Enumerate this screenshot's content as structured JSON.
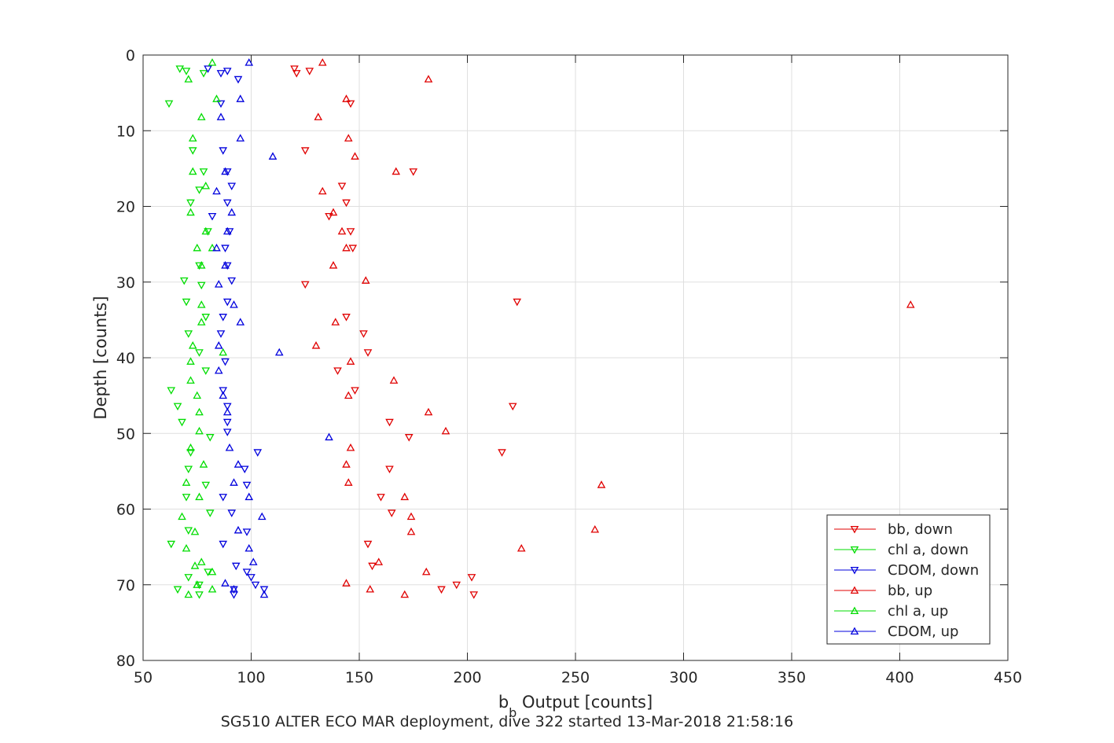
{
  "chart_data": {
    "type": "scatter",
    "xlabel_main": "b",
    "xlabel_sub": "b",
    "xlabel_rest": " Output [counts]",
    "ylabel": "Depth [counts]",
    "caption": "SG510 ALTER ECO MAR deployment, dive 322 started 13-Mar-2018 21:58:16",
    "xlim": [
      50,
      450
    ],
    "ylim": [
      0,
      80
    ],
    "y_reversed": true,
    "grid": true,
    "legend_position": "bottom-right",
    "xticks": [
      50,
      100,
      150,
      200,
      250,
      300,
      350,
      400,
      450
    ],
    "yticks": [
      0,
      10,
      20,
      30,
      40,
      50,
      60,
      70,
      80
    ],
    "series": [
      {
        "name": "bb, down",
        "color": "#e00000",
        "marker": "down",
        "points": [
          [
            120,
            1.8
          ],
          [
            121,
            2.4
          ],
          [
            127,
            2.1
          ],
          [
            146,
            6.4
          ],
          [
            125,
            12.6
          ],
          [
            175,
            15.4
          ],
          [
            142,
            17.3
          ],
          [
            144,
            19.5
          ],
          [
            136,
            21.3
          ],
          [
            146,
            23.3
          ],
          [
            147,
            25.5
          ],
          [
            125,
            30.3
          ],
          [
            223,
            32.6
          ],
          [
            144,
            34.6
          ],
          [
            152,
            36.8
          ],
          [
            154,
            39.3
          ],
          [
            140,
            41.7
          ],
          [
            148,
            44.3
          ],
          [
            221,
            46.4
          ],
          [
            164,
            48.5
          ],
          [
            173,
            50.5
          ],
          [
            216,
            52.5
          ],
          [
            164,
            54.7
          ],
          [
            160,
            58.4
          ],
          [
            165,
            60.5
          ],
          [
            154,
            64.6
          ],
          [
            156,
            67.5
          ],
          [
            202,
            69.0
          ],
          [
            195,
            70.0
          ],
          [
            188,
            70.6
          ],
          [
            203,
            71.3
          ]
        ]
      },
      {
        "name": "chl a, down",
        "color": "#00dd00",
        "marker": "down",
        "points": [
          [
            67,
            1.8
          ],
          [
            70,
            2.1
          ],
          [
            78,
            2.4
          ],
          [
            62,
            6.4
          ],
          [
            73,
            12.6
          ],
          [
            78,
            15.4
          ],
          [
            76,
            17.8
          ],
          [
            72,
            19.5
          ],
          [
            80,
            23.3
          ],
          [
            76,
            27.8
          ],
          [
            69,
            29.8
          ],
          [
            77,
            30.4
          ],
          [
            70,
            32.6
          ],
          [
            79,
            34.6
          ],
          [
            71,
            36.8
          ],
          [
            76,
            39.3
          ],
          [
            79,
            41.7
          ],
          [
            63,
            44.3
          ],
          [
            66,
            46.4
          ],
          [
            68,
            48.5
          ],
          [
            81,
            50.5
          ],
          [
            72,
            52.5
          ],
          [
            71,
            54.7
          ],
          [
            79,
            56.8
          ],
          [
            70,
            58.4
          ],
          [
            81,
            60.5
          ],
          [
            71,
            62.8
          ],
          [
            63,
            64.6
          ],
          [
            80,
            68.3
          ],
          [
            71,
            69.0
          ],
          [
            76,
            70.0
          ],
          [
            66,
            70.6
          ],
          [
            76,
            71.3
          ]
        ]
      },
      {
        "name": "CDOM, down",
        "color": "#0000dd",
        "marker": "down",
        "points": [
          [
            80,
            1.8
          ],
          [
            89,
            2.1
          ],
          [
            86,
            2.4
          ],
          [
            94,
            3.2
          ],
          [
            86,
            6.4
          ],
          [
            87,
            12.6
          ],
          [
            89,
            15.4
          ],
          [
            91,
            17.3
          ],
          [
            89,
            19.5
          ],
          [
            82,
            21.3
          ],
          [
            90,
            23.3
          ],
          [
            88,
            25.5
          ],
          [
            89,
            27.8
          ],
          [
            91,
            29.8
          ],
          [
            89,
            32.6
          ],
          [
            87,
            34.6
          ],
          [
            86,
            36.8
          ],
          [
            88,
            40.5
          ],
          [
            87,
            44.3
          ],
          [
            89,
            46.4
          ],
          [
            89,
            48.5
          ],
          [
            89,
            49.8
          ],
          [
            103,
            52.5
          ],
          [
            97,
            54.7
          ],
          [
            98,
            56.8
          ],
          [
            87,
            58.4
          ],
          [
            91,
            60.5
          ],
          [
            98,
            63.0
          ],
          [
            87,
            64.6
          ],
          [
            93,
            67.5
          ],
          [
            98,
            68.3
          ],
          [
            100,
            69.0
          ],
          [
            102,
            70.0
          ],
          [
            92,
            70.6
          ],
          [
            106,
            70.6
          ],
          [
            92,
            71.3
          ]
        ]
      },
      {
        "name": "bb, up",
        "color": "#e00000",
        "marker": "up",
        "points": [
          [
            133,
            1.0
          ],
          [
            182,
            3.2
          ],
          [
            144,
            5.8
          ],
          [
            131,
            8.2
          ],
          [
            145,
            11.0
          ],
          [
            148,
            13.4
          ],
          [
            167,
            15.4
          ],
          [
            133,
            18.0
          ],
          [
            138,
            20.8
          ],
          [
            142,
            23.3
          ],
          [
            144,
            25.5
          ],
          [
            138,
            27.8
          ],
          [
            153,
            29.8
          ],
          [
            405,
            33.0
          ],
          [
            139,
            35.3
          ],
          [
            130,
            38.4
          ],
          [
            146,
            40.5
          ],
          [
            166,
            43.0
          ],
          [
            145,
            45.0
          ],
          [
            182,
            47.2
          ],
          [
            190,
            49.7
          ],
          [
            146,
            51.9
          ],
          [
            144,
            54.1
          ],
          [
            145,
            56.5
          ],
          [
            262,
            56.8
          ],
          [
            171,
            58.4
          ],
          [
            174,
            61.0
          ],
          [
            259,
            62.7
          ],
          [
            174,
            63.0
          ],
          [
            225,
            65.2
          ],
          [
            159,
            67.0
          ],
          [
            181,
            68.3
          ],
          [
            144,
            69.8
          ],
          [
            155,
            70.6
          ],
          [
            171,
            71.3
          ]
        ]
      },
      {
        "name": "chl a, up",
        "color": "#00dd00",
        "marker": "up",
        "points": [
          [
            82,
            1.0
          ],
          [
            71,
            3.2
          ],
          [
            84,
            5.8
          ],
          [
            77,
            8.2
          ],
          [
            73,
            11.0
          ],
          [
            73,
            15.4
          ],
          [
            79,
            17.3
          ],
          [
            72,
            20.8
          ],
          [
            79,
            23.3
          ],
          [
            75,
            25.5
          ],
          [
            82,
            25.5
          ],
          [
            77,
            27.8
          ],
          [
            77,
            33.0
          ],
          [
            77,
            35.3
          ],
          [
            73,
            38.4
          ],
          [
            87,
            39.3
          ],
          [
            72,
            40.5
          ],
          [
            72,
            43.0
          ],
          [
            75,
            45.0
          ],
          [
            76,
            47.2
          ],
          [
            76,
            49.7
          ],
          [
            72,
            51.9
          ],
          [
            78,
            54.1
          ],
          [
            70,
            56.5
          ],
          [
            76,
            58.4
          ],
          [
            68,
            61.0
          ],
          [
            74,
            63.0
          ],
          [
            70,
            65.2
          ],
          [
            77,
            67.0
          ],
          [
            74,
            67.5
          ],
          [
            82,
            68.3
          ],
          [
            75,
            70.0
          ],
          [
            75,
            70.0
          ],
          [
            82,
            70.6
          ],
          [
            71,
            71.3
          ]
        ]
      },
      {
        "name": "CDOM, up",
        "color": "#0000dd",
        "marker": "up",
        "points": [
          [
            99,
            1.0
          ],
          [
            95,
            5.8
          ],
          [
            86,
            8.2
          ],
          [
            95,
            11.0
          ],
          [
            110,
            13.4
          ],
          [
            88,
            15.4
          ],
          [
            84,
            18.0
          ],
          [
            91,
            20.8
          ],
          [
            89,
            23.3
          ],
          [
            84,
            25.5
          ],
          [
            88,
            27.8
          ],
          [
            85,
            30.3
          ],
          [
            92,
            33.0
          ],
          [
            95,
            35.3
          ],
          [
            85,
            38.4
          ],
          [
            113,
            39.3
          ],
          [
            85,
            41.7
          ],
          [
            87,
            45.0
          ],
          [
            89,
            47.2
          ],
          [
            136,
            50.5
          ],
          [
            90,
            51.9
          ],
          [
            94,
            54.1
          ],
          [
            92,
            56.5
          ],
          [
            99,
            58.4
          ],
          [
            105,
            61.0
          ],
          [
            94,
            62.8
          ],
          [
            99,
            65.2
          ],
          [
            101,
            67.0
          ],
          [
            88,
            69.8
          ],
          [
            92,
            70.6
          ],
          [
            106,
            71.3
          ]
        ]
      }
    ]
  }
}
